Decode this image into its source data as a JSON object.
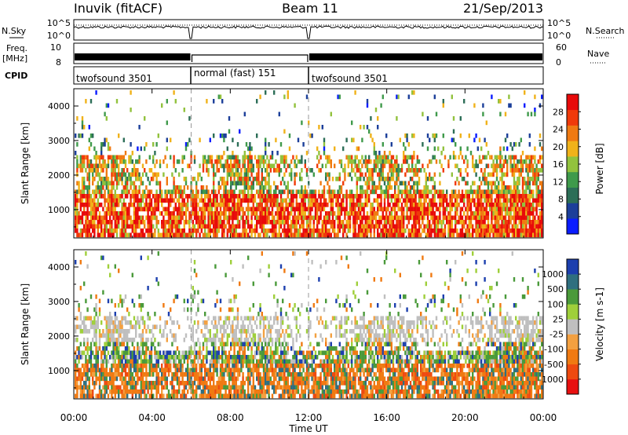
{
  "header": {
    "station": "Inuvik (fitACF)",
    "beam": "Beam 11",
    "date": "21/Sep/2013"
  },
  "left_labels": {
    "nsky": "N.Sky",
    "freq": "Freq.",
    "freq_unit": "[MHz]",
    "cpid": "CPID"
  },
  "right_labels": {
    "nsearch": "N.Search",
    "nave": "Nave"
  },
  "noise_panel": {
    "left_ticks": [
      "10^5",
      "10^0"
    ],
    "right_ticks": [
      "10^5",
      "10^0"
    ]
  },
  "freq_panel": {
    "left_ticks": [
      "10",
      "8"
    ],
    "right_ticks": [
      "60",
      "0"
    ]
  },
  "cpid_segments": [
    {
      "label": "twofsound 3501",
      "start_hour": 0,
      "end_hour": 6
    },
    {
      "label": "normal (fast) 151",
      "start_hour": 6,
      "end_hour": 12
    },
    {
      "label": "twofsound 3501",
      "start_hour": 12,
      "end_hour": 24
    }
  ],
  "colors": {
    "power_scale": [
      "#0a1cff",
      "#1c3f9a",
      "#2c6e57",
      "#3f9a4b",
      "#92c23d",
      "#f0b21a",
      "#f07a12",
      "#f03a0a",
      "#e80a0a"
    ],
    "velocity_scale": [
      "#e81010",
      "#ee4a10",
      "#f07a12",
      "#f3a040",
      "#bfbfbf",
      "#9fcf3a",
      "#4a9a3a",
      "#2f6f7f",
      "#1c3fae"
    ]
  },
  "chart_data": [
    {
      "type": "heatmap",
      "panel": "power",
      "xlabel": "Time UT",
      "ylabel": "Slant Range [km]",
      "xlim": [
        0,
        24
      ],
      "ylim": [
        180,
        4500
      ],
      "x_ticks": [
        "00:00",
        "04:00",
        "08:00",
        "12:00",
        "16:00",
        "20:00",
        "00:00"
      ],
      "y_ticks": [
        1000,
        2000,
        3000,
        4000
      ],
      "colorbar": {
        "label": "Power [dB]",
        "ticks": [
          "28",
          "24",
          "20",
          "16",
          "12",
          "8",
          "4"
        ],
        "range": [
          0,
          32
        ]
      }
    },
    {
      "type": "heatmap",
      "panel": "velocity",
      "xlabel": "Time UT",
      "ylabel": "Slant Range [km]",
      "xlim": [
        0,
        24
      ],
      "ylim": [
        180,
        4500
      ],
      "x_ticks": [
        "00:00",
        "04:00",
        "08:00",
        "12:00",
        "16:00",
        "20:00",
        "00:00"
      ],
      "y_ticks": [
        1000,
        2000,
        3000,
        4000
      ],
      "colorbar": {
        "label": "Velocity [m s-1]",
        "ticks": [
          "1000",
          "500",
          "100",
          "25",
          "-25",
          "-100",
          "-500",
          "-1000"
        ]
      }
    }
  ]
}
